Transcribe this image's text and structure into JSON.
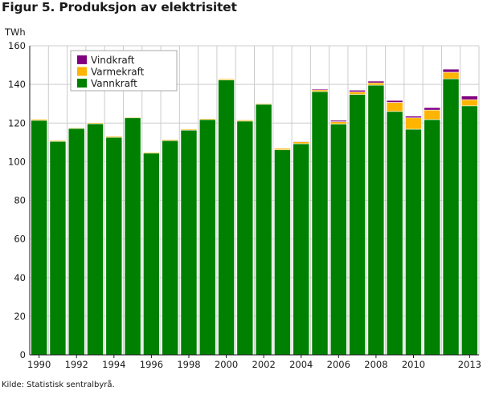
{
  "title": "Figur 5. Produksjon av elektrisitet",
  "source": "Kilde: Statistisk sentralbyrå.",
  "colors": {
    "Vindkraft": "#800080",
    "Varmekraft": "#ffb400",
    "Vannkraft": "#008000",
    "grid": "#cccccc",
    "bar_edge": "#ffffff"
  },
  "chart_data": {
    "type": "bar",
    "stacked": true,
    "title": "Figur 5. Produksjon av elektrisitet",
    "ylabel": "TWh",
    "ylim": [
      0,
      160
    ],
    "yticks": [
      0,
      20,
      40,
      60,
      80,
      100,
      120,
      140,
      160
    ],
    "xtick_labels": [
      "1990",
      "1992",
      "1994",
      "1996",
      "1998",
      "2000",
      "2002",
      "2004",
      "2006",
      "2008",
      "2010",
      "2013"
    ],
    "categories": [
      "1990",
      "1991",
      "1992",
      "1993",
      "1994",
      "1995",
      "1996",
      "1997",
      "1998",
      "1999",
      "2000",
      "2001",
      "2002",
      "2003",
      "2004",
      "2005",
      "2006",
      "2007",
      "2008",
      "2009",
      "2010",
      "2011",
      "2012",
      "2013"
    ],
    "grid": true,
    "legend_position": "top-left",
    "series": [
      {
        "name": "Vannkraft",
        "values": [
          121.4,
          110.5,
          117.2,
          119.6,
          112.6,
          122.7,
          104.4,
          110.9,
          116.3,
          121.8,
          142.3,
          121.0,
          129.7,
          106.1,
          109.3,
          136.3,
          119.5,
          134.8,
          139.6,
          126.0,
          116.8,
          121.8,
          142.9,
          128.9
        ]
      },
      {
        "name": "Varmekraft",
        "values": [
          0.6,
          0.5,
          0.4,
          0.5,
          0.6,
          0.4,
          0.5,
          0.5,
          0.5,
          0.5,
          0.6,
          0.6,
          0.6,
          0.9,
          1.0,
          0.9,
          1.2,
          1.3,
          1.2,
          4.7,
          5.9,
          4.9,
          3.4,
          3.2
        ]
      },
      {
        "name": "Vindkraft",
        "values": [
          0.0,
          0.0,
          0.0,
          0.0,
          0.0,
          0.0,
          0.0,
          0.0,
          0.0,
          0.0,
          0.0,
          0.0,
          0.1,
          0.2,
          0.3,
          0.5,
          0.7,
          0.9,
          0.9,
          1.0,
          0.9,
          1.3,
          1.6,
          1.9
        ]
      }
    ]
  }
}
